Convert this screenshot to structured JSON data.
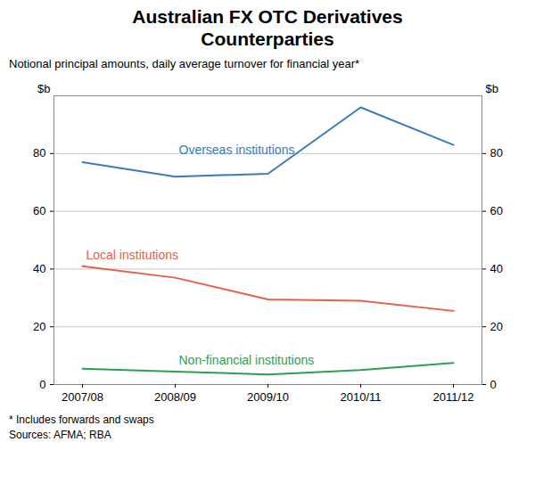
{
  "chart_data": {
    "type": "line",
    "title": "Australian FX OTC Derivatives\nCounterparties",
    "subtitle": "Notional principal amounts, daily average turnover for financial year*",
    "ylabel": "$b",
    "y2label": "$b",
    "footnotes": [
      "*    Includes forwards and swaps",
      "Sources: AFMA; RBA"
    ],
    "categories": [
      "2007/08",
      "2008/09",
      "2009/10",
      "2010/11",
      "2011/12"
    ],
    "series": [
      {
        "name": "Overseas institutions",
        "color": "#3a7bbf",
        "values": [
          77,
          72,
          73,
          96,
          83
        ]
      },
      {
        "name": "Local institutions",
        "color": "#e8604c",
        "values": [
          41,
          37,
          29.5,
          29,
          25.5
        ]
      },
      {
        "name": "Non-financial institutions",
        "color": "#2ca050",
        "values": [
          5.5,
          4.5,
          3.5,
          5,
          7.5
        ]
      }
    ],
    "ylim": [
      0,
      100
    ],
    "yticks": [
      0,
      20,
      40,
      60,
      80
    ],
    "y2lim": [
      0,
      100
    ],
    "y2ticks": [
      0,
      20,
      40,
      60,
      80
    ],
    "grid": true
  }
}
